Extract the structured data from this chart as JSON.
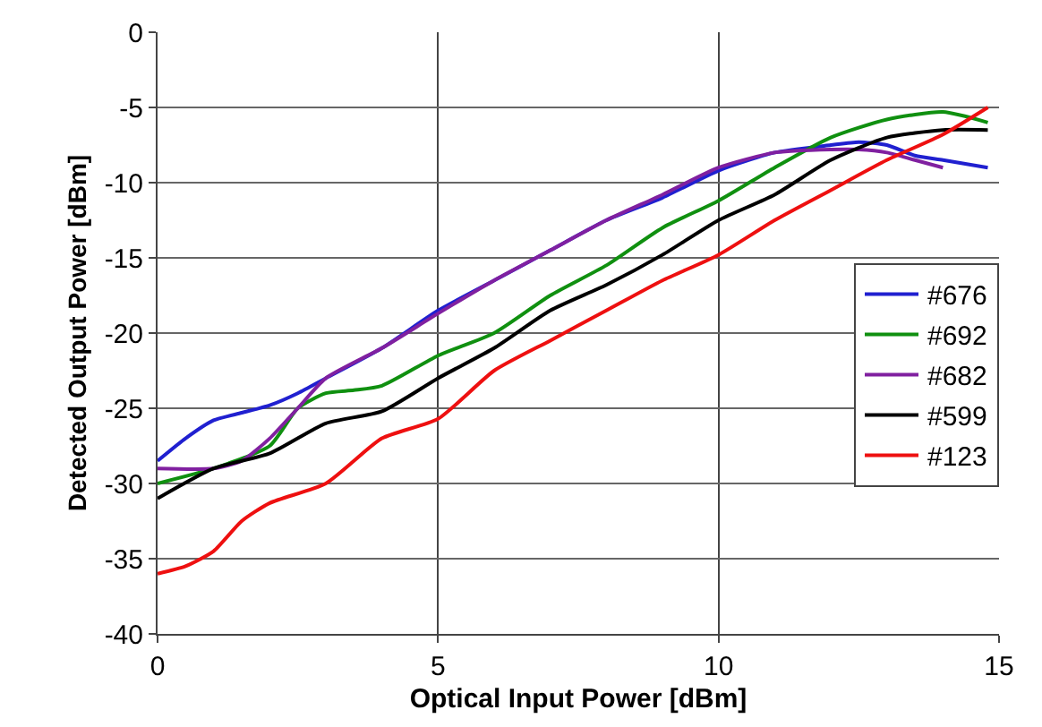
{
  "chart_data": {
    "type": "line",
    "xlabel": "Optical Input Power [dBm]",
    "ylabel": "Detected Output Power [dBm]",
    "xlim": [
      0,
      15
    ],
    "xticks": [
      0,
      5,
      10,
      15
    ],
    "ylim": [
      -40,
      0
    ],
    "yticks": [
      -40,
      -35,
      -30,
      -25,
      -20,
      -15,
      -10,
      -5,
      0
    ],
    "grid": true,
    "legend": "right",
    "marker": "none",
    "line_style": "solid",
    "series": [
      {
        "name": "#676",
        "color": "#2020d0",
        "x": [
          0,
          0.5,
          1,
          1.5,
          2,
          2.5,
          3,
          4,
          5,
          6,
          7,
          8,
          9,
          10,
          11,
          12,
          12.5,
          13,
          13.5,
          14,
          14.8
        ],
        "values": [
          -28.5,
          -27,
          -25.8,
          -25.3,
          -24.8,
          -24,
          -23,
          -21,
          -18.5,
          -16.5,
          -14.5,
          -12.5,
          -11,
          -9.2,
          -8,
          -7.5,
          -7.3,
          -7.5,
          -8.2,
          -8.5,
          -9
        ]
      },
      {
        "name": "#692",
        "color": "#109010",
        "x": [
          0,
          1,
          2,
          2.5,
          3,
          3.5,
          4,
          5,
          6,
          7,
          8,
          9,
          10,
          11,
          12,
          13,
          14,
          14.8
        ],
        "values": [
          -30,
          -29,
          -27.5,
          -25,
          -24,
          -23.8,
          -23.5,
          -21.5,
          -20,
          -17.5,
          -15.5,
          -13,
          -11.2,
          -9,
          -7,
          -5.8,
          -5.3,
          -6
        ]
      },
      {
        "name": "#682",
        "color": "#8020a0",
        "x": [
          0,
          1,
          1.5,
          2,
          2.5,
          3,
          4,
          5,
          6,
          7,
          8,
          9,
          10,
          11,
          12,
          12.5,
          13,
          13.5,
          14
        ],
        "values": [
          -29,
          -29,
          -28.5,
          -27,
          -25,
          -23,
          -21,
          -18.7,
          -16.5,
          -14.5,
          -12.5,
          -10.8,
          -9,
          -8,
          -7.8,
          -7.8,
          -8,
          -8.5,
          -9
        ]
      },
      {
        "name": "#599",
        "color": "#000000",
        "x": [
          0,
          1,
          2,
          3,
          4,
          5,
          6,
          7,
          8,
          9,
          10,
          11,
          12,
          13,
          14,
          14.8
        ],
        "values": [
          -31,
          -29,
          -28,
          -26,
          -25.2,
          -23,
          -21,
          -18.5,
          -16.8,
          -14.8,
          -12.5,
          -10.8,
          -8.5,
          -7,
          -6.5,
          -6.5
        ]
      },
      {
        "name": "#123",
        "color": "#ee1010",
        "x": [
          0,
          0.5,
          1,
          1.5,
          2,
          3,
          4,
          5,
          6,
          7,
          8,
          9,
          10,
          11,
          12,
          13,
          14,
          14.8
        ],
        "values": [
          -36,
          -35.5,
          -34.5,
          -32.5,
          -31.3,
          -30,
          -27,
          -25.7,
          -22.5,
          -20.5,
          -18.5,
          -16.5,
          -14.8,
          -12.5,
          -10.5,
          -8.5,
          -6.8,
          -5
        ]
      }
    ]
  }
}
